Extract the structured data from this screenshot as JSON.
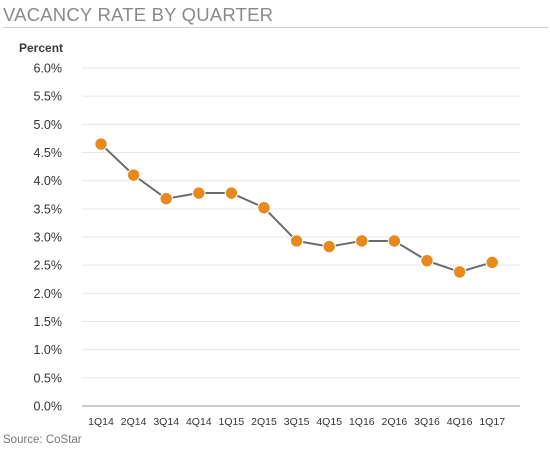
{
  "title": "VACANCY RATE BY QUARTER",
  "source": "Source: CoStar",
  "chart_data": {
    "type": "line",
    "title": "VACANCY RATE BY QUARTER",
    "ylabel": "Percent",
    "xlabel": "",
    "categories": [
      "1Q14",
      "2Q14",
      "3Q14",
      "4Q14",
      "1Q15",
      "2Q15",
      "3Q15",
      "4Q15",
      "1Q16",
      "2Q16",
      "3Q16",
      "4Q16",
      "1Q17"
    ],
    "values": [
      4.65,
      4.1,
      3.68,
      3.78,
      3.78,
      3.52,
      2.93,
      2.83,
      2.93,
      2.93,
      2.58,
      2.38,
      2.55
    ],
    "ylim": [
      0,
      6
    ],
    "yticks": [
      "0.0%",
      "0.5%",
      "1.0%",
      "1.5%",
      "2.0%",
      "2.5%",
      "3.0%",
      "3.5%",
      "4.0%",
      "4.5%",
      "5.0%",
      "5.5%",
      "6.0%"
    ],
    "grid": true,
    "line_color": "#6b6b6b",
    "marker_color": "#e8891e"
  }
}
